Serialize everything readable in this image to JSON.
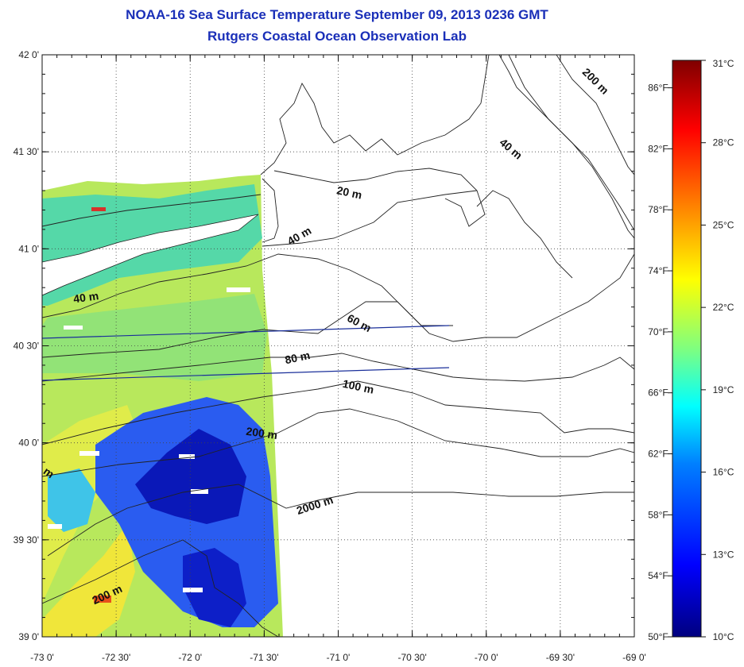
{
  "title": "NOAA-16 Sea Surface Temperature September 09, 2013 0236 GMT",
  "subtitle": "Rutgers Coastal Ocean Observation Lab",
  "map": {
    "lon_range": [
      -73.0,
      -69.0
    ],
    "lat_range": [
      39.0,
      42.0
    ],
    "grid": true,
    "lon_ticks": [
      {
        "value": -73.0,
        "label": "-73 0'"
      },
      {
        "value": -72.5,
        "label": "-72 30'"
      },
      {
        "value": -72.0,
        "label": "-72 0'"
      },
      {
        "value": -71.5,
        "label": "-71 30'"
      },
      {
        "value": -71.0,
        "label": "-71 0'"
      },
      {
        "value": -70.5,
        "label": "-70 30'"
      },
      {
        "value": -70.0,
        "label": "-70 0'"
      },
      {
        "value": -69.5,
        "label": "-69 30'"
      },
      {
        "value": -69.0,
        "label": "-69 0'"
      }
    ],
    "lat_ticks": [
      {
        "value": 42.0,
        "label": "42 0'"
      },
      {
        "value": 41.5,
        "label": "41 30'"
      },
      {
        "value": 41.0,
        "label": "41 0'"
      },
      {
        "value": 40.5,
        "label": "40 30'"
      },
      {
        "value": 40.0,
        "label": "40 0'"
      },
      {
        "value": 39.5,
        "label": "39 30'"
      },
      {
        "value": 39.0,
        "label": "39 0'"
      }
    ],
    "contour_labels": [
      {
        "text": "20 m",
        "lon": -70.93,
        "lat": 41.27,
        "angle": 12
      },
      {
        "text": "40 m",
        "lon": -71.25,
        "lat": 41.05,
        "angle": -30
      },
      {
        "text": "40 m",
        "lon": -72.7,
        "lat": 40.73,
        "angle": -8
      },
      {
        "text": "40 m",
        "lon": -69.85,
        "lat": 41.5,
        "angle": 40
      },
      {
        "text": "60 m",
        "lon": -70.87,
        "lat": 40.6,
        "angle": 28
      },
      {
        "text": "80 m",
        "lon": -71.27,
        "lat": 40.42,
        "angle": -12
      },
      {
        "text": "100 m",
        "lon": -70.87,
        "lat": 40.27,
        "angle": 12
      },
      {
        "text": "200 m",
        "lon": -71.52,
        "lat": 40.03,
        "angle": 8
      },
      {
        "text": "200 m",
        "lon": -69.28,
        "lat": 41.85,
        "angle": 45
      },
      {
        "text": "200 m",
        "lon": -72.55,
        "lat": 39.2,
        "angle": -25
      },
      {
        "text": "2000 m",
        "lon": -71.15,
        "lat": 39.66,
        "angle": -18
      },
      {
        "text": "m",
        "lon": -72.97,
        "lat": 39.83,
        "angle": 35
      }
    ]
  },
  "colorbar": {
    "celsius_labels": [
      "31°C",
      "28°C",
      "25°C",
      "22°C",
      "19°C",
      "16°C",
      "13°C",
      "10°C"
    ],
    "celsius_values": [
      31,
      28,
      25,
      22,
      19,
      16,
      13,
      10
    ],
    "fahrenheit_labels": [
      "86°F",
      "82°F",
      "78°F",
      "74°F",
      "70°F",
      "66°F",
      "62°F",
      "58°F",
      "54°F",
      "50°F"
    ],
    "fahrenheit_values": [
      86,
      82,
      78,
      74,
      70,
      66,
      62,
      58,
      54,
      50
    ],
    "range_c": [
      10,
      31
    ],
    "colors": [
      "#00007f",
      "#0000ff",
      "#007fff",
      "#00ffff",
      "#7fff7f",
      "#ffff00",
      "#ff7f00",
      "#ff0000",
      "#7f0000"
    ]
  }
}
